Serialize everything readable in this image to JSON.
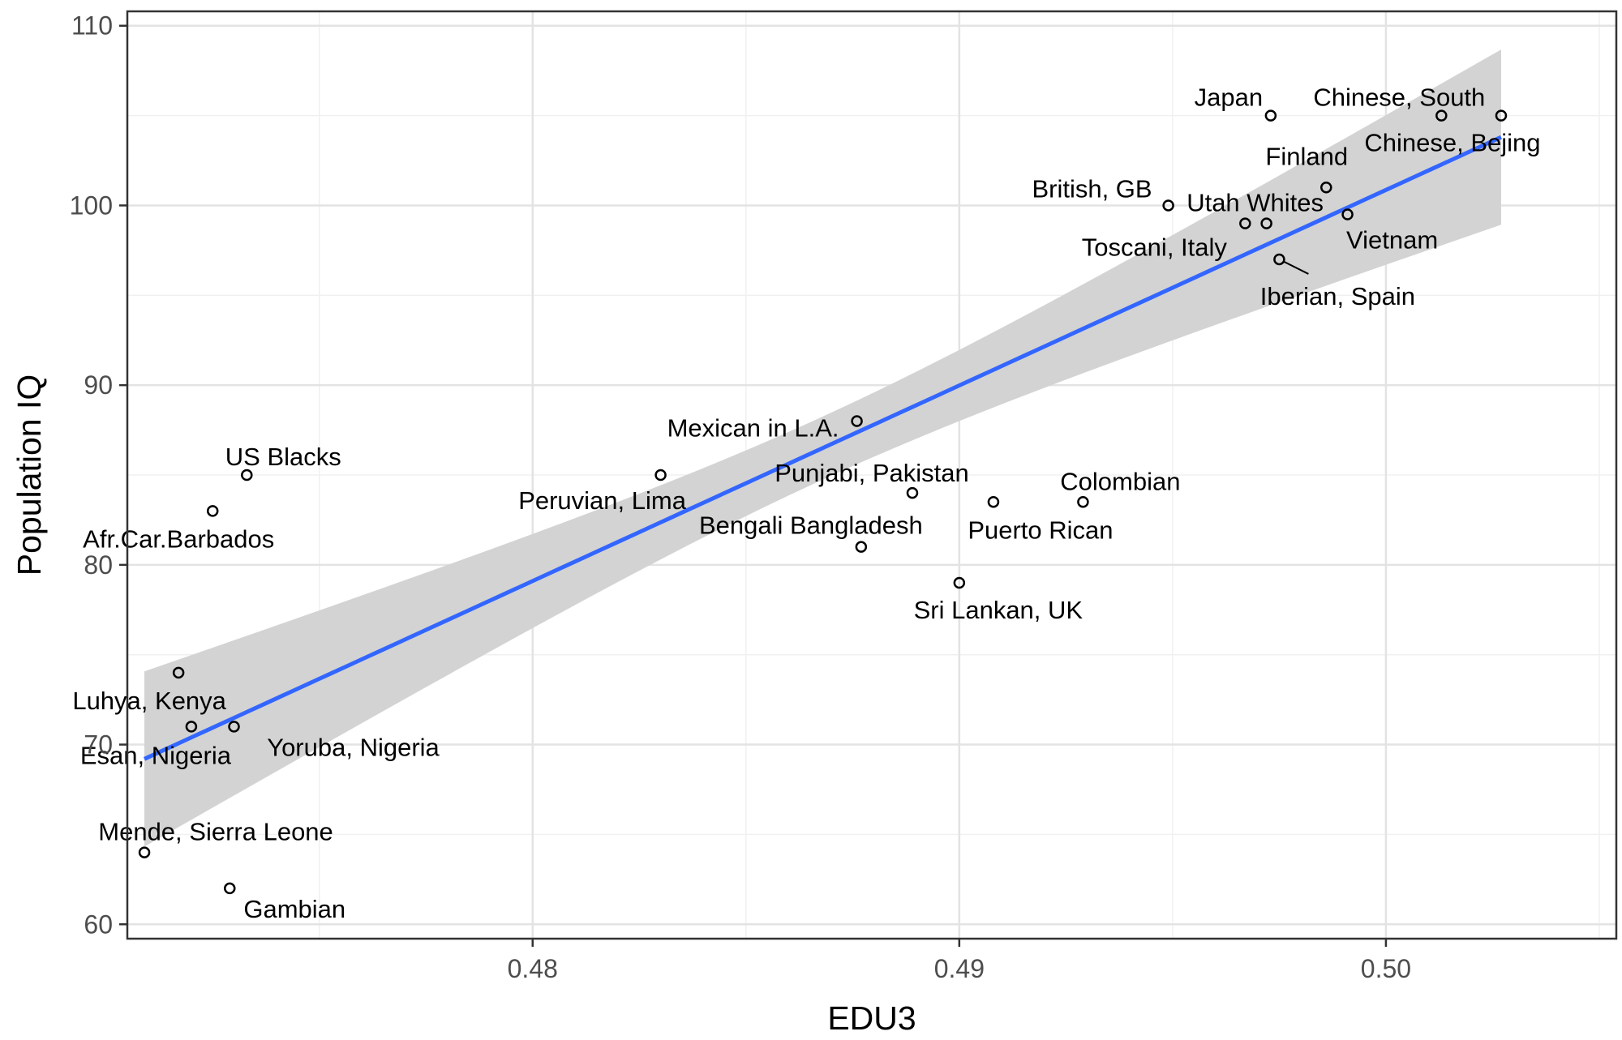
{
  "chart_data": {
    "type": "scatter",
    "title": "",
    "xlabel": "EDU3",
    "ylabel": "Population IQ",
    "xlim": [
      0.4705,
      0.5054
    ],
    "ylim": [
      59.2,
      110.8
    ],
    "x_ticks": [
      0.48,
      0.49,
      0.5
    ],
    "x_tick_labels": [
      "0.48",
      "0.49",
      "0.50"
    ],
    "y_ticks": [
      60,
      70,
      80,
      90,
      100,
      110
    ],
    "y_tick_labels": [
      "60",
      "70",
      "80",
      "90",
      "100",
      "110"
    ],
    "grid": true,
    "points": [
      {
        "label": "Japan",
        "x": 0.4973,
        "y": 105.0
      },
      {
        "label": "Chinese, South",
        "x": 0.5013,
        "y": 105.0
      },
      {
        "label": "Chinese, Bejing",
        "x": 0.5027,
        "y": 105.0
      },
      {
        "label": "Finland",
        "x": 0.4986,
        "y": 101.0
      },
      {
        "label": "British, GB",
        "x": 0.4949,
        "y": 100.0
      },
      {
        "label": "Utah Whites",
        "x": 0.4972,
        "y": 99.0
      },
      {
        "label": "Toscani, Italy",
        "x": 0.4967,
        "y": 99.0
      },
      {
        "label": "Vietnam",
        "x": 0.4991,
        "y": 99.5
      },
      {
        "label": "Iberian, Spain",
        "x": 0.4975,
        "y": 97.0
      },
      {
        "label": "Mexican in L.A.",
        "x": 0.4876,
        "y": 88.0
      },
      {
        "label": "US Blacks",
        "x": 0.4733,
        "y": 85.0
      },
      {
        "label": "Peruvian, Lima",
        "x": 0.483,
        "y": 85.0
      },
      {
        "label": "Punjabi, Pakistan",
        "x": 0.4889,
        "y": 84.0
      },
      {
        "label": "Puerto Rican",
        "x": 0.4908,
        "y": 83.5
      },
      {
        "label": "Colombian",
        "x": 0.4929,
        "y": 83.5
      },
      {
        "label": "Afr.Car.Barbados",
        "x": 0.4725,
        "y": 83.0
      },
      {
        "label": "Bengali Bangladesh",
        "x": 0.4877,
        "y": 81.0
      },
      {
        "label": "Sri Lankan, UK",
        "x": 0.49,
        "y": 79.0
      },
      {
        "label": "Luhya, Kenya",
        "x": 0.4717,
        "y": 74.0
      },
      {
        "label": "Esan, Nigeria",
        "x": 0.472,
        "y": 71.0
      },
      {
        "label": "Yoruba, Nigeria",
        "x": 0.473,
        "y": 71.0
      },
      {
        "label": "Mende, Sierra Leone",
        "x": 0.4709,
        "y": 64.0
      },
      {
        "label": "Gambian",
        "x": 0.4729,
        "y": 62.0
      }
    ],
    "fit": {
      "method": "lm",
      "x": [
        0.4709,
        0.5027
      ],
      "y": [
        69.2,
        103.8
      ],
      "ci_lower": [
        64.2,
        98.9
      ],
      "ci_upper": [
        74.3,
        108.3
      ]
    }
  }
}
